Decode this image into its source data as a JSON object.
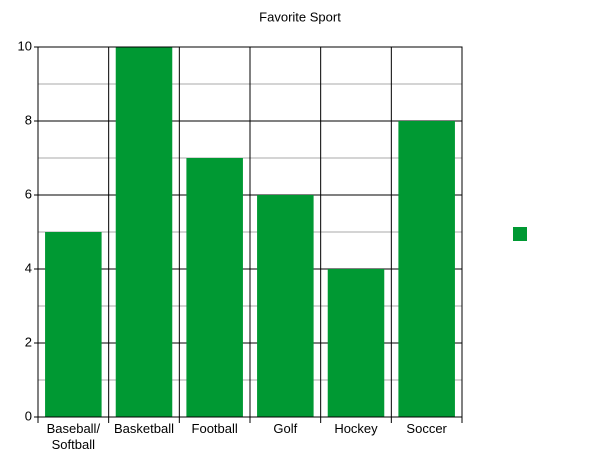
{
  "chart_data": {
    "type": "bar",
    "title": "Favorite Sport",
    "categories": [
      "Baseball/ Softball",
      "Basketball",
      "Football",
      "Golf",
      "Hockey",
      "Soccer"
    ],
    "values": [
      5,
      10,
      7,
      6,
      4,
      8
    ],
    "color": "#009933",
    "ylim": [
      0,
      10
    ],
    "yticks": [
      0,
      2,
      4,
      6,
      8,
      10
    ],
    "grid": true
  }
}
